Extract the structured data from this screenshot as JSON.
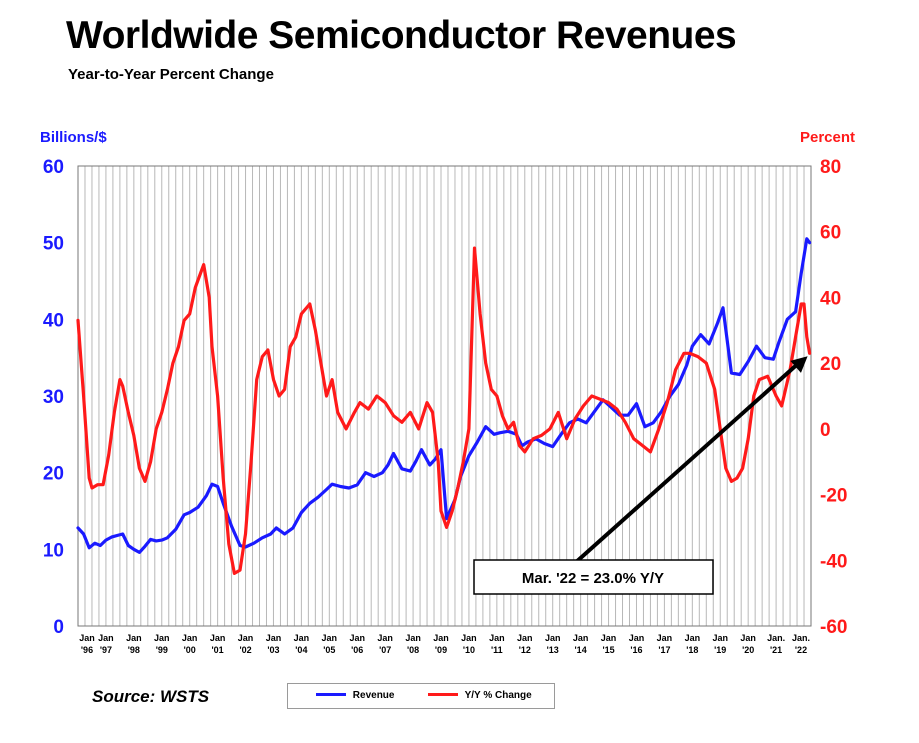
{
  "header": {
    "title": "Worldwide Semiconductor Revenues",
    "subtitle": "Year-to-Year Percent Change"
  },
  "footer": {
    "source": "Source: WSTS"
  },
  "legend": {
    "items": [
      {
        "label": "Revenue",
        "color": "#1a1aff"
      },
      {
        "label": "Y/Y % Change",
        "color": "#ff1a1a"
      }
    ]
  },
  "chart_data": {
    "type": "line",
    "title": "Worldwide Semiconductor Revenues",
    "subtitle": "Year-to-Year Percent Change",
    "ylabel_left": "Billions/$",
    "ylabel_right": "Percent",
    "ylim_left": [
      0,
      60
    ],
    "ylim_right": [
      -60,
      80
    ],
    "yticks_left": [
      "0",
      "10",
      "20",
      "30",
      "40",
      "50",
      "60"
    ],
    "yticks_right": [
      "-60",
      "-40",
      "-20",
      "0",
      "20",
      "40",
      "60",
      "80"
    ],
    "xlim": [
      1996.0,
      2022.25
    ],
    "x_tick_labels": [
      [
        "Jan",
        "'96"
      ],
      [
        "Jan",
        "'97"
      ],
      [
        "Jan",
        "'98"
      ],
      [
        "Jan",
        "'99"
      ],
      [
        "Jan",
        "'00"
      ],
      [
        "Jan",
        "'01"
      ],
      [
        "Jan",
        "'02"
      ],
      [
        "Jan",
        "'03"
      ],
      [
        "Jan",
        "'04"
      ],
      [
        "Jan",
        "'05"
      ],
      [
        "Jan",
        "'06"
      ],
      [
        "Jan",
        "'07"
      ],
      [
        "Jan",
        "'08"
      ],
      [
        "Jan",
        "'09"
      ],
      [
        "Jan",
        "'10"
      ],
      [
        "Jan",
        "'11"
      ],
      [
        "Jan",
        "'12"
      ],
      [
        "Jan",
        "'13"
      ],
      [
        "Jan",
        "'14"
      ],
      [
        "Jan",
        "'15"
      ],
      [
        "Jan",
        "'16"
      ],
      [
        "Jan",
        "'17"
      ],
      [
        "Jan",
        "'18"
      ],
      [
        "Jan",
        "'19"
      ],
      [
        "Jan",
        "'20"
      ],
      [
        "Jan.",
        "'21"
      ],
      [
        "Jan.",
        "'22"
      ]
    ],
    "grid": "vertical",
    "legend_position": "bottom-center",
    "series": [
      {
        "name": "Revenue",
        "axis": "left",
        "color": "#1a1aff",
        "x": [
          1996.0,
          1996.2,
          1996.4,
          1996.6,
          1996.8,
          1997.0,
          1997.2,
          1997.4,
          1997.6,
          1997.8,
          1998.0,
          1998.2,
          1998.4,
          1998.6,
          1998.8,
          1999.0,
          1999.2,
          1999.5,
          1999.8,
          2000.0,
          2000.3,
          2000.6,
          2000.8,
          2001.0,
          2001.2,
          2001.5,
          2001.8,
          2002.0,
          2002.3,
          2002.6,
          2002.9,
          2003.1,
          2003.4,
          2003.7,
          2004.0,
          2004.3,
          2004.6,
          2004.9,
          2005.1,
          2005.4,
          2005.7,
          2006.0,
          2006.3,
          2006.6,
          2006.9,
          2007.1,
          2007.3,
          2007.6,
          2007.9,
          2008.1,
          2008.3,
          2008.6,
          2008.8,
          2009.0,
          2009.2,
          2009.5,
          2009.7,
          2010.0,
          2010.3,
          2010.6,
          2010.9,
          2011.1,
          2011.4,
          2011.7,
          2011.9,
          2012.1,
          2012.4,
          2012.7,
          2013.0,
          2013.3,
          2013.6,
          2013.9,
          2014.2,
          2014.5,
          2014.8,
          2015.1,
          2015.4,
          2015.7,
          2016.0,
          2016.3,
          2016.6,
          2016.9,
          2017.2,
          2017.5,
          2017.8,
          2018.0,
          2018.3,
          2018.6,
          2018.9,
          2019.1,
          2019.4,
          2019.7,
          2020.0,
          2020.3,
          2020.6,
          2020.9,
          2021.1,
          2021.4,
          2021.7,
          2021.9,
          2022.1,
          2022.2
        ],
        "values": [
          12.8,
          12.0,
          10.2,
          10.8,
          10.5,
          11.2,
          11.6,
          11.8,
          12.0,
          10.5,
          10.0,
          9.6,
          10.4,
          11.3,
          11.1,
          11.2,
          11.5,
          12.6,
          14.5,
          14.8,
          15.5,
          17.0,
          18.5,
          18.2,
          16.0,
          13.0,
          10.5,
          10.3,
          10.8,
          11.5,
          12.0,
          12.8,
          12.0,
          12.8,
          14.8,
          16.0,
          16.8,
          17.8,
          18.5,
          18.2,
          18.0,
          18.4,
          20.0,
          19.5,
          20.0,
          21.0,
          22.5,
          20.5,
          20.2,
          21.5,
          23.0,
          21.0,
          21.8,
          23.0,
          14.0,
          16.5,
          19.5,
          22.2,
          24.0,
          26.0,
          25.0,
          25.2,
          25.4,
          25.0,
          23.5,
          24.0,
          24.4,
          23.8,
          23.4,
          25.0,
          26.5,
          27.0,
          26.5,
          28.0,
          29.5,
          28.5,
          27.5,
          27.5,
          29.0,
          26.0,
          26.5,
          28.0,
          30.0,
          31.5,
          34.0,
          36.5,
          38.0,
          36.8,
          39.5,
          41.5,
          33.0,
          32.8,
          34.5,
          36.5,
          35.0,
          34.8,
          37.0,
          40.0,
          41.0,
          46.0,
          50.5,
          50.0
        ]
      },
      {
        "name": "Y/Y % Change",
        "axis": "right",
        "color": "#ff1a1a",
        "x": [
          1996.0,
          1996.2,
          1996.4,
          1996.5,
          1996.7,
          1996.9,
          1997.1,
          1997.3,
          1997.5,
          1997.6,
          1997.8,
          1998.0,
          1998.2,
          1998.4,
          1998.6,
          1998.8,
          1999.0,
          1999.2,
          1999.4,
          1999.6,
          1999.8,
          2000.0,
          2000.2,
          2000.5,
          2000.7,
          2000.8,
          2001.0,
          2001.2,
          2001.4,
          2001.6,
          2001.8,
          2002.0,
          2002.2,
          2002.4,
          2002.6,
          2002.8,
          2003.0,
          2003.2,
          2003.4,
          2003.6,
          2003.8,
          2004.0,
          2004.3,
          2004.5,
          2004.7,
          2004.9,
          2005.1,
          2005.3,
          2005.6,
          2005.9,
          2006.1,
          2006.4,
          2006.7,
          2007.0,
          2007.3,
          2007.6,
          2007.9,
          2008.2,
          2008.5,
          2008.7,
          2008.9,
          2009.0,
          2009.2,
          2009.4,
          2009.6,
          2009.8,
          2010.0,
          2010.2,
          2010.4,
          2010.6,
          2010.8,
          2011.0,
          2011.2,
          2011.4,
          2011.6,
          2011.8,
          2012.0,
          2012.3,
          2012.6,
          2012.9,
          2013.2,
          2013.5,
          2013.8,
          2014.1,
          2014.4,
          2014.7,
          2015.0,
          2015.3,
          2015.6,
          2015.9,
          2016.2,
          2016.5,
          2016.8,
          2017.1,
          2017.4,
          2017.7,
          2017.9,
          2018.2,
          2018.5,
          2018.8,
          2019.0,
          2019.2,
          2019.4,
          2019.6,
          2019.8,
          2020.0,
          2020.2,
          2020.4,
          2020.7,
          2021.0,
          2021.2,
          2021.5,
          2021.7,
          2021.9,
          2022.0,
          2022.1,
          2022.2
        ],
        "values": [
          33,
          10,
          -15,
          -18,
          -17,
          -17,
          -8,
          5,
          15,
          13,
          5,
          -2,
          -12,
          -16,
          -10,
          0,
          5,
          12,
          20,
          25,
          33,
          35,
          43,
          50,
          40,
          25,
          10,
          -15,
          -35,
          -44,
          -43,
          -32,
          -10,
          15,
          22,
          24,
          15,
          10,
          12,
          25,
          28,
          35,
          38,
          30,
          20,
          10,
          15,
          5,
          0,
          5,
          8,
          6,
          10,
          8,
          4,
          2,
          5,
          0,
          8,
          5,
          -10,
          -25,
          -30,
          -25,
          -18,
          -10,
          0,
          55,
          35,
          20,
          12,
          10,
          4,
          0,
          2,
          -5,
          -7,
          -3,
          -2,
          0,
          5,
          -3,
          3,
          7,
          10,
          9,
          8,
          6,
          2,
          -3,
          -5,
          -7,
          0,
          8,
          18,
          23,
          23,
          22,
          20,
          12,
          0,
          -12,
          -16,
          -15,
          -12,
          -3,
          10,
          15,
          16,
          10,
          7,
          18,
          28,
          38,
          38,
          28,
          23
        ]
      }
    ],
    "annotation": {
      "text": "Mar. '22 = 23.0% Y/Y",
      "x": 2022.2,
      "y": 23.0,
      "axis": "right"
    }
  }
}
